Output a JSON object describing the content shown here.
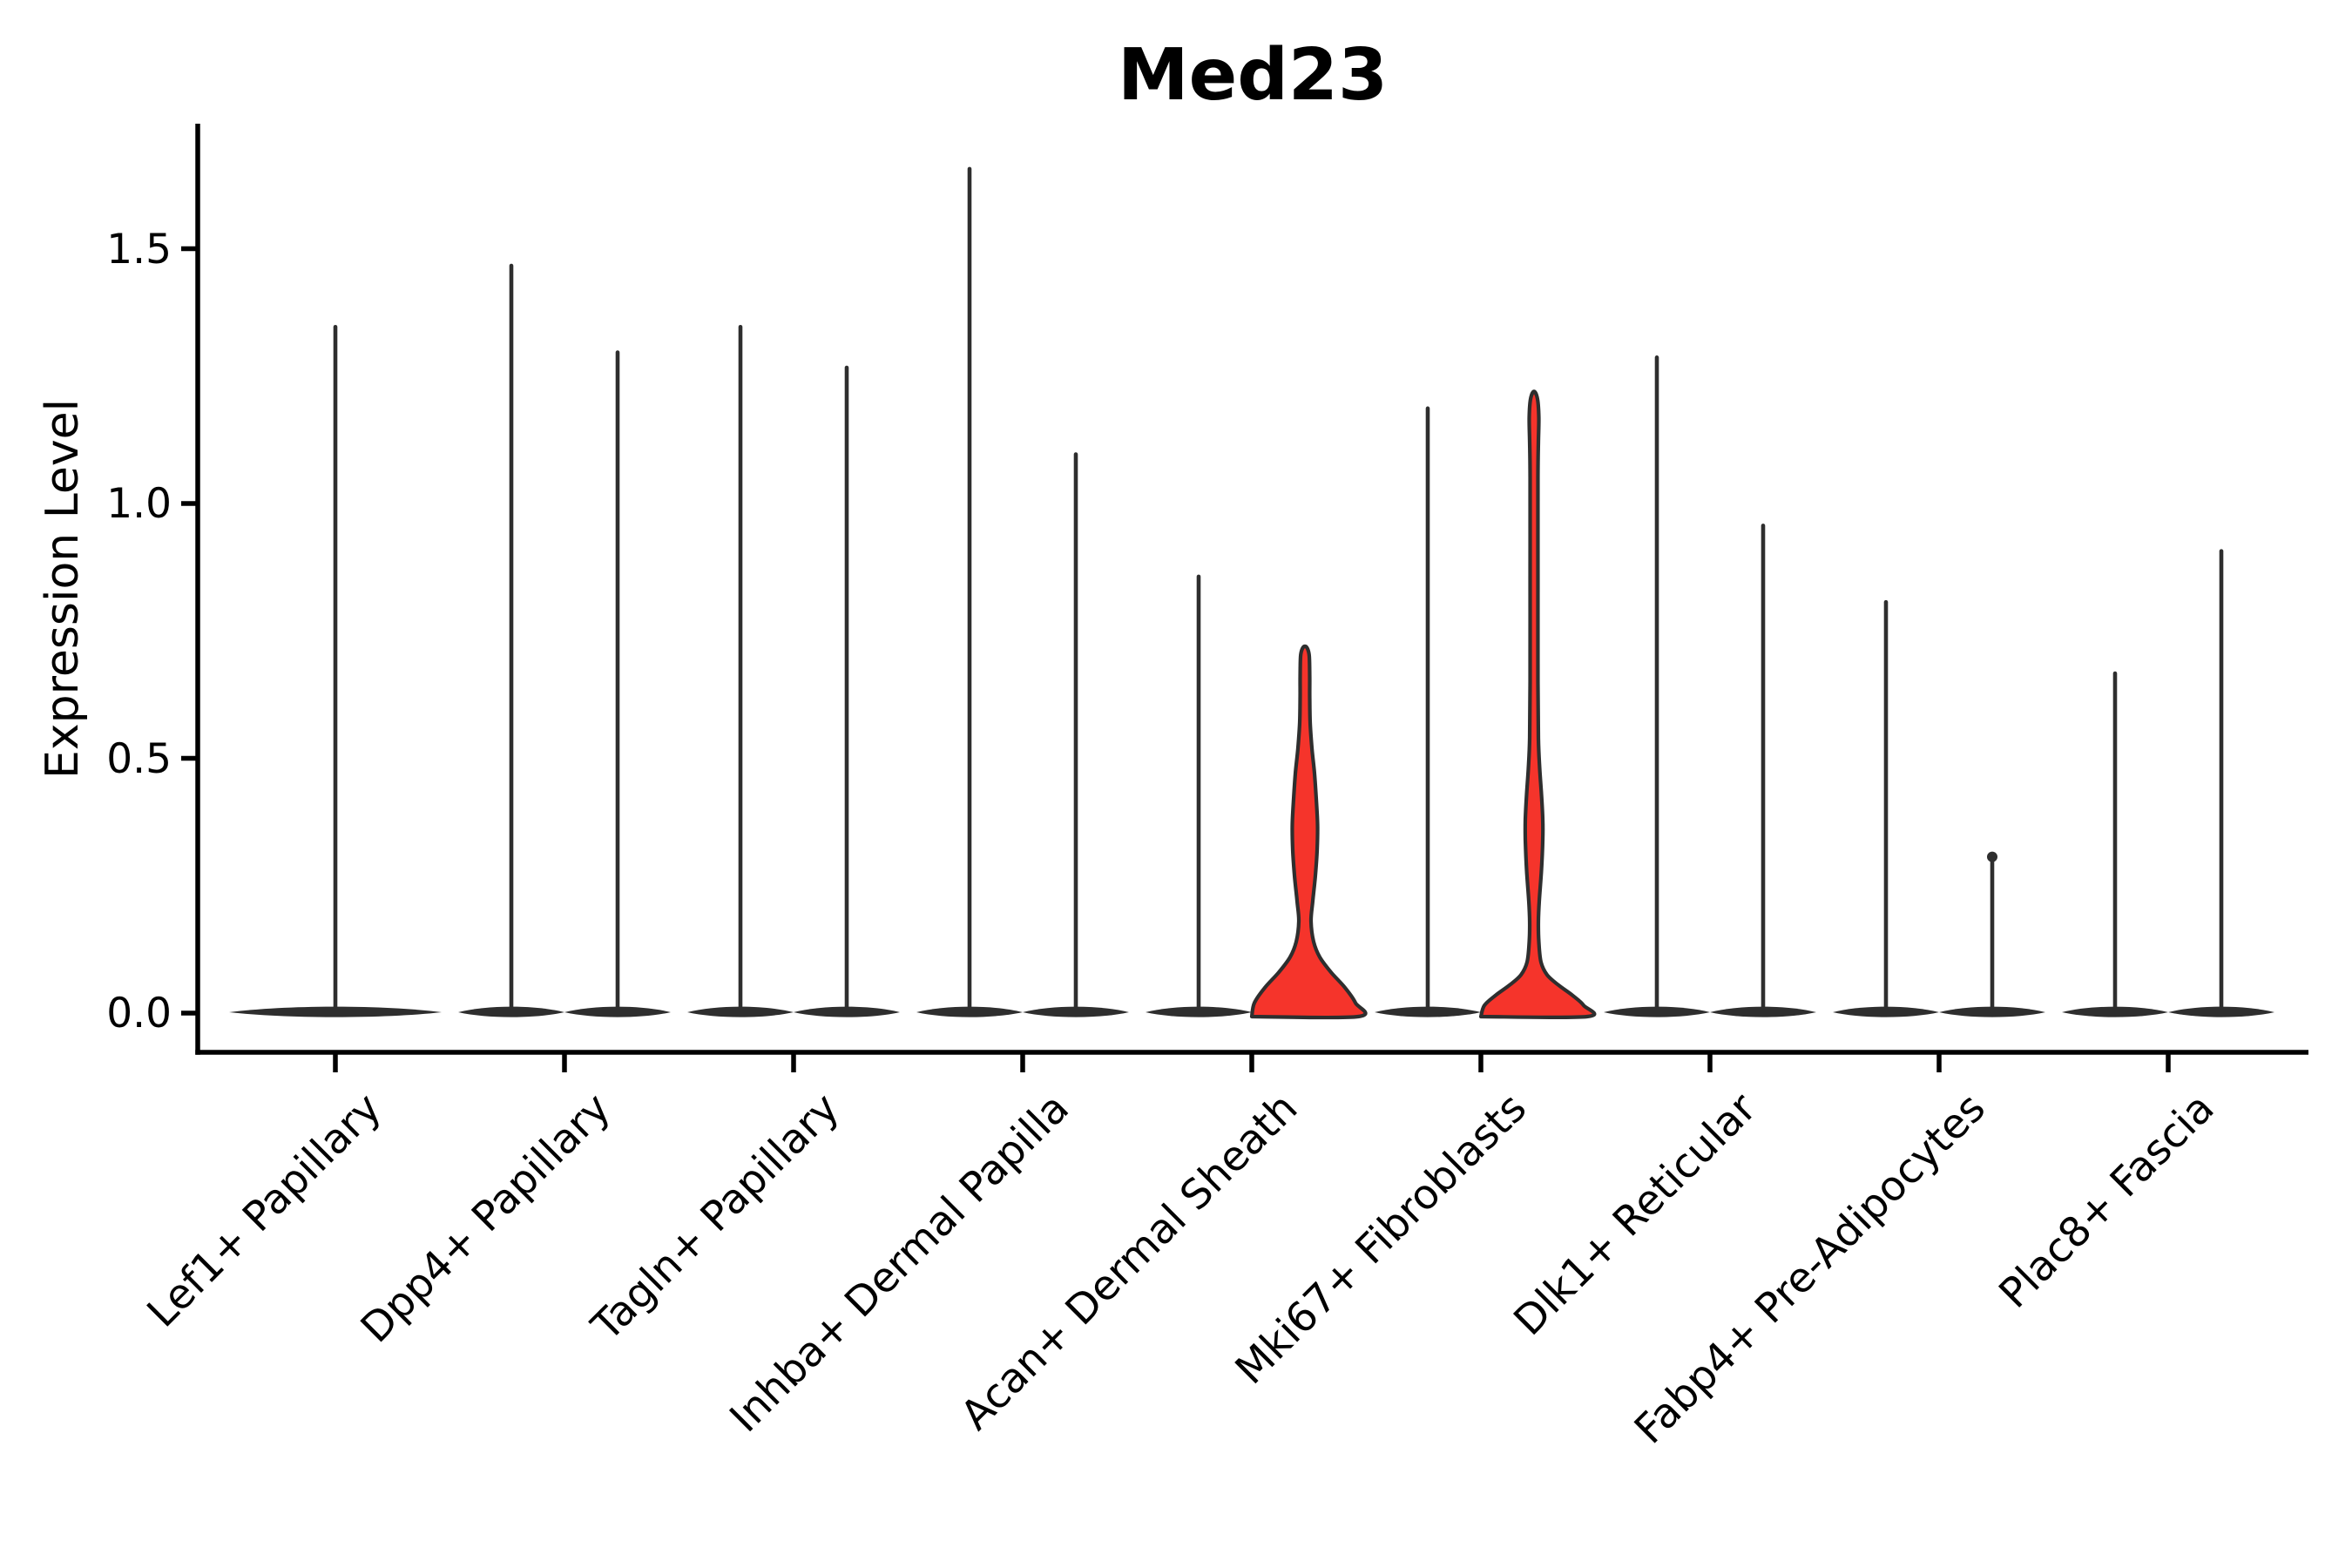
{
  "chart_data": {
    "type": "violin",
    "title": "Med23",
    "xlabel": "",
    "ylabel": "Expression Level",
    "yticks": [
      0.0,
      0.5,
      1.0,
      1.5
    ],
    "ytick_labels": [
      "0.0",
      "0.5",
      "1.0",
      "1.5"
    ],
    "ylim": [
      -0.08,
      1.75
    ],
    "grid": false,
    "legend": "none",
    "categories": [
      "Lef1+ Papillary",
      "Dpp4+ Papillary",
      "Tagln+ Papillary",
      "Inhba+ Dermal Papilla",
      "Acan+ Dermal Sheath",
      "Mki67+ Fibroblasts",
      "Dlk1+ Reticular",
      "Fabp4+ Pre-Adipocytes",
      "Plac8+ Fascia"
    ],
    "violins": [
      {
        "category": "Lef1+ Papillary",
        "side": "full",
        "max": 1.35,
        "highlighted": false
      },
      {
        "category": "Dpp4+ Papillary",
        "side": "left",
        "max": 1.47,
        "highlighted": false
      },
      {
        "category": "Dpp4+ Papillary",
        "side": "right",
        "max": 1.3,
        "highlighted": false
      },
      {
        "category": "Tagln+ Papillary",
        "side": "left",
        "max": 1.35,
        "highlighted": false
      },
      {
        "category": "Tagln+ Papillary",
        "side": "right",
        "max": 1.27,
        "highlighted": false
      },
      {
        "category": "Inhba+ Dermal Papilla",
        "side": "left",
        "max": 1.66,
        "highlighted": false
      },
      {
        "category": "Inhba+ Dermal Papilla",
        "side": "right",
        "max": 1.1,
        "highlighted": false
      },
      {
        "category": "Acan+ Dermal Sheath",
        "side": "left",
        "max": 0.86,
        "highlighted": false
      },
      {
        "category": "Acan+ Dermal Sheath",
        "side": "right",
        "max": 0.72,
        "highlighted": true,
        "profile": [
          [
            0,
            61
          ],
          [
            0.02,
            58
          ],
          [
            0.05,
            46
          ],
          [
            0.08,
            30
          ],
          [
            0.11,
            17
          ],
          [
            0.14,
            10
          ],
          [
            0.18,
            7
          ],
          [
            0.22,
            9
          ],
          [
            0.27,
            12
          ],
          [
            0.32,
            14
          ],
          [
            0.37,
            14.5
          ],
          [
            0.42,
            13
          ],
          [
            0.47,
            11
          ],
          [
            0.52,
            8
          ],
          [
            0.57,
            6
          ],
          [
            0.62,
            5.5
          ],
          [
            0.66,
            5.5
          ],
          [
            0.7,
            5
          ],
          [
            0.715,
            3
          ],
          [
            0.72,
            0
          ]
        ]
      },
      {
        "category": "Mki67+ Fibroblasts",
        "side": "left",
        "max": 1.19,
        "highlighted": false
      },
      {
        "category": "Mki67+ Fibroblasts",
        "side": "right",
        "max": 1.22,
        "highlighted": true,
        "profile": [
          [
            0,
            61
          ],
          [
            0.015,
            57
          ],
          [
            0.035,
            44
          ],
          [
            0.055,
            28
          ],
          [
            0.075,
            15
          ],
          [
            0.1,
            8
          ],
          [
            0.14,
            5.5
          ],
          [
            0.18,
            5
          ],
          [
            0.22,
            6
          ],
          [
            0.28,
            8.5
          ],
          [
            0.34,
            10
          ],
          [
            0.38,
            10
          ],
          [
            0.43,
            8.5
          ],
          [
            0.48,
            6.5
          ],
          [
            0.54,
            5
          ],
          [
            0.65,
            4.5
          ],
          [
            0.85,
            4.5
          ],
          [
            1.05,
            4.5
          ],
          [
            1.12,
            5
          ],
          [
            1.17,
            5.5
          ],
          [
            1.205,
            4
          ],
          [
            1.22,
            0
          ]
        ]
      },
      {
        "category": "Dlk1+ Reticular",
        "side": "left",
        "max": 1.29,
        "highlighted": false
      },
      {
        "category": "Dlk1+ Reticular",
        "side": "right",
        "max": 0.96,
        "highlighted": false
      },
      {
        "category": "Fabp4+ Pre-Adipocytes",
        "side": "left",
        "max": 0.81,
        "highlighted": false
      },
      {
        "category": "Fabp4+ Pre-Adipocytes",
        "side": "right",
        "max": 0.31,
        "highlighted": false,
        "tip_knob": true
      },
      {
        "category": "Plac8+ Fascia",
        "side": "left",
        "max": 0.67,
        "highlighted": false
      },
      {
        "category": "Plac8+ Fascia",
        "side": "right",
        "max": 0.91,
        "highlighted": false
      }
    ],
    "colors": {
      "axis": "#000000",
      "text": "#000000",
      "violin_outline": "#2e2e2e",
      "violin_fill_default": "#2e2e2e",
      "violin_fill_highlight": "#f5342b"
    }
  }
}
